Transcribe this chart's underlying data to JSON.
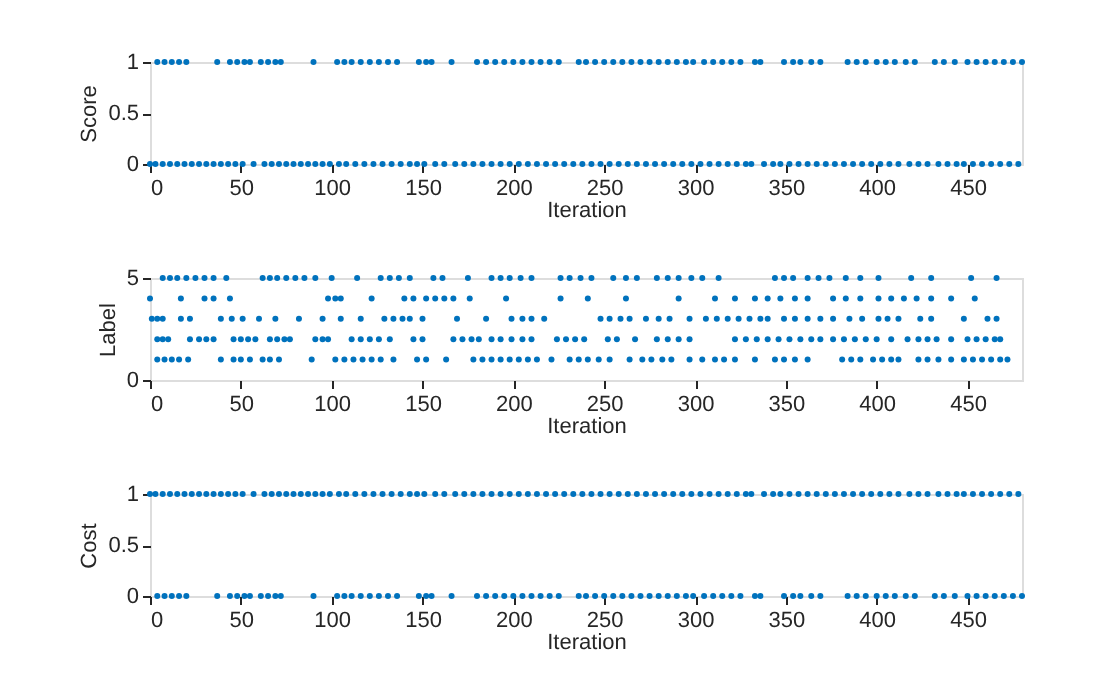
{
  "chart_data": [
    {
      "type": "scatter",
      "xlabel": "Iteration",
      "ylabel": "Score",
      "xlim": [
        0,
        480
      ],
      "xticks": [
        0,
        50,
        100,
        150,
        200,
        250,
        300,
        350,
        400,
        450
      ],
      "ylim": [
        0,
        1
      ],
      "yticks": [
        0,
        0.5,
        1
      ],
      "grid": false,
      "marker": "circle",
      "series": [
        {
          "color": "#0072bd",
          "x": [
            4,
            8,
            12,
            16,
            20,
            37,
            44,
            48,
            52,
            55,
            61,
            65,
            69,
            72,
            90,
            103,
            107,
            111,
            116,
            121,
            126,
            131,
            136,
            148,
            152,
            155,
            166,
            180,
            185,
            190,
            195,
            200,
            205,
            210,
            215,
            220,
            225,
            236,
            240,
            245,
            250,
            255,
            260,
            265,
            270,
            275,
            280,
            285,
            290,
            295,
            299,
            305,
            310,
            315,
            320,
            325,
            333,
            336,
            349,
            354,
            358,
            364,
            369,
            384,
            389,
            394,
            400,
            405,
            410,
            416,
            421,
            432,
            437,
            443,
            450,
            455,
            460,
            465,
            470,
            475,
            480
          ],
          "values": [
            1,
            1,
            1,
            1,
            1,
            1,
            1,
            1,
            1,
            1,
            1,
            1,
            1,
            1,
            1,
            1,
            1,
            1,
            1,
            1,
            1,
            1,
            1,
            1,
            1,
            1,
            1,
            1,
            1,
            1,
            1,
            1,
            1,
            1,
            1,
            1,
            1,
            1,
            1,
            1,
            1,
            1,
            1,
            1,
            1,
            1,
            1,
            1,
            1,
            1,
            1,
            1,
            1,
            1,
            1,
            1,
            1,
            1,
            1,
            1,
            1,
            1,
            1,
            1,
            1,
            1,
            1,
            1,
            1,
            1,
            1,
            1,
            1,
            1,
            1,
            1,
            1,
            1,
            1,
            1,
            1
          ]
        },
        {
          "color": "#0072bd",
          "x": [
            0,
            3,
            7,
            11,
            15,
            19,
            23,
            27,
            31,
            35,
            39,
            43,
            47,
            51,
            57,
            63,
            67,
            71,
            75,
            79,
            83,
            87,
            91,
            95,
            99,
            104,
            108,
            113,
            118,
            123,
            128,
            133,
            138,
            143,
            147,
            151,
            157,
            162,
            168,
            173,
            178,
            183,
            188,
            193,
            198,
            203,
            208,
            213,
            218,
            223,
            228,
            233,
            238,
            243,
            248,
            253,
            258,
            263,
            268,
            273,
            278,
            283,
            288,
            293,
            298,
            303,
            308,
            313,
            318,
            323,
            328,
            331,
            338,
            343,
            347,
            352,
            357,
            362,
            367,
            372,
            377,
            382,
            387,
            392,
            397,
            402,
            407,
            412,
            418,
            423,
            428,
            434,
            439,
            444,
            448,
            453,
            458,
            463,
            468,
            473,
            478
          ],
          "values": [
            0,
            0,
            0,
            0,
            0,
            0,
            0,
            0,
            0,
            0,
            0,
            0,
            0,
            0,
            0,
            0,
            0,
            0,
            0,
            0,
            0,
            0,
            0,
            0,
            0,
            0,
            0,
            0,
            0,
            0,
            0,
            0,
            0,
            0,
            0,
            0,
            0,
            0,
            0,
            0,
            0,
            0,
            0,
            0,
            0,
            0,
            0,
            0,
            0,
            0,
            0,
            0,
            0,
            0,
            0,
            0,
            0,
            0,
            0,
            0,
            0,
            0,
            0,
            0,
            0,
            0,
            0,
            0,
            0,
            0,
            0,
            0,
            0,
            0,
            0,
            0,
            0,
            0,
            0,
            0,
            0,
            0,
            0,
            0,
            0,
            0,
            0,
            0,
            0,
            0,
            0,
            0,
            0,
            0,
            0,
            0,
            0,
            0,
            0,
            0,
            0
          ]
        }
      ]
    },
    {
      "type": "scatter",
      "xlabel": "Iteration",
      "ylabel": "Label",
      "xlim": [
        0,
        480
      ],
      "xticks": [
        0,
        50,
        100,
        150,
        200,
        250,
        300,
        350,
        400,
        450
      ],
      "ylim": [
        0,
        5
      ],
      "yticks": [
        0,
        5
      ],
      "grid": false,
      "marker": "circle",
      "series": [
        {
          "color": "#0072bd",
          "x": [
            7,
            11,
            15,
            20,
            25,
            30,
            35,
            42,
            62,
            66,
            70,
            75,
            80,
            85,
            91,
            100,
            114,
            127,
            132,
            137,
            143,
            156,
            161,
            175,
            188,
            193,
            198,
            204,
            210,
            226,
            231,
            237,
            243,
            255,
            262,
            268,
            279,
            285,
            291,
            298,
            304,
            313,
            344,
            349,
            354,
            362,
            368,
            374,
            383,
            391,
            401,
            419,
            430,
            452,
            466
          ],
          "values": [
            5,
            5,
            5,
            5,
            5,
            5,
            5,
            5,
            5,
            5,
            5,
            5,
            5,
            5,
            5,
            5,
            5,
            5,
            5,
            5,
            5,
            5,
            5,
            5,
            5,
            5,
            5,
            5,
            5,
            5,
            5,
            5,
            5,
            5,
            5,
            5,
            5,
            5,
            5,
            5,
            5,
            5,
            5,
            5,
            5,
            5,
            5,
            5,
            5,
            5,
            5,
            5,
            5,
            5,
            5
          ]
        },
        {
          "color": "#0072bd",
          "x": [
            0,
            17,
            30,
            35,
            44,
            98,
            102,
            105,
            122,
            140,
            145,
            152,
            157,
            162,
            167,
            176,
            196,
            226,
            241,
            262,
            291,
            311,
            322,
            333,
            340,
            347,
            355,
            362,
            376,
            383,
            391,
            401,
            408,
            415,
            422,
            430,
            441,
            454
          ],
          "values": [
            4,
            4,
            4,
            4,
            4,
            4,
            4,
            4,
            4,
            4,
            4,
            4,
            4,
            4,
            4,
            4,
            4,
            4,
            4,
            4,
            4,
            4,
            4,
            4,
            4,
            4,
            4,
            4,
            4,
            4,
            4,
            4,
            4,
            4,
            4,
            4,
            4,
            4
          ]
        },
        {
          "color": "#0072bd",
          "x": [
            1,
            4,
            7,
            17,
            22,
            39,
            45,
            51,
            60,
            69,
            82,
            95,
            105,
            116,
            129,
            134,
            139,
            143,
            150,
            169,
            185,
            199,
            205,
            210,
            217,
            248,
            253,
            259,
            264,
            273,
            280,
            286,
            297,
            306,
            312,
            318,
            324,
            330,
            336,
            340,
            349,
            355,
            362,
            369,
            376,
            385,
            392,
            401,
            406,
            412,
            424,
            430,
            448,
            461,
            466
          ],
          "values": [
            3,
            3,
            3,
            3,
            3,
            3,
            3,
            3,
            3,
            3,
            3,
            3,
            3,
            3,
            3,
            3,
            3,
            3,
            3,
            3,
            3,
            3,
            3,
            3,
            3,
            3,
            3,
            3,
            3,
            3,
            3,
            3,
            3,
            3,
            3,
            3,
            3,
            3,
            3,
            3,
            3,
            3,
            3,
            3,
            3,
            3,
            3,
            3,
            3,
            3,
            3,
            3,
            3,
            3,
            3
          ]
        },
        {
          "color": "#0072bd",
          "x": [
            4,
            7,
            10,
            22,
            27,
            31,
            35,
            46,
            50,
            54,
            58,
            66,
            70,
            74,
            77,
            91,
            95,
            98,
            111,
            116,
            121,
            126,
            132,
            145,
            150,
            167,
            172,
            177,
            181,
            188,
            193,
            199,
            205,
            210,
            224,
            229,
            234,
            239,
            252,
            257,
            267,
            279,
            285,
            291,
            297,
            322,
            328,
            334,
            340,
            346,
            352,
            358,
            364,
            369,
            376,
            382,
            388,
            394,
            400,
            408,
            417,
            423,
            428,
            433,
            441,
            450,
            455,
            460,
            465,
            468
          ],
          "values": [
            2,
            2,
            2,
            2,
            2,
            2,
            2,
            2,
            2,
            2,
            2,
            2,
            2,
            2,
            2,
            2,
            2,
            2,
            2,
            2,
            2,
            2,
            2,
            2,
            2,
            2,
            2,
            2,
            2,
            2,
            2,
            2,
            2,
            2,
            2,
            2,
            2,
            2,
            2,
            2,
            2,
            2,
            2,
            2,
            2,
            2,
            2,
            2,
            2,
            2,
            2,
            2,
            2,
            2,
            2,
            2,
            2,
            2,
            2,
            2,
            2,
            2,
            2,
            2,
            2,
            2,
            2,
            2,
            2,
            2
          ]
        },
        {
          "color": "#0072bd",
          "x": [
            4,
            8,
            12,
            16,
            21,
            39,
            46,
            50,
            55,
            62,
            66,
            71,
            89,
            102,
            107,
            112,
            117,
            122,
            127,
            134,
            147,
            152,
            163,
            178,
            183,
            188,
            193,
            198,
            203,
            208,
            213,
            221,
            231,
            236,
            241,
            247,
            253,
            264,
            271,
            276,
            282,
            287,
            297,
            304,
            311,
            316,
            322,
            333,
            344,
            349,
            355,
            362,
            381,
            386,
            391,
            398,
            403,
            408,
            412,
            423,
            428,
            434,
            441,
            448,
            453,
            458,
            463,
            468,
            472
          ],
          "values": [
            1,
            1,
            1,
            1,
            1,
            1,
            1,
            1,
            1,
            1,
            1,
            1,
            1,
            1,
            1,
            1,
            1,
            1,
            1,
            1,
            1,
            1,
            1,
            1,
            1,
            1,
            1,
            1,
            1,
            1,
            1,
            1,
            1,
            1,
            1,
            1,
            1,
            1,
            1,
            1,
            1,
            1,
            1,
            1,
            1,
            1,
            1,
            1,
            1,
            1,
            1,
            1,
            1,
            1,
            1,
            1,
            1,
            1,
            1,
            1,
            1,
            1,
            1,
            1,
            1,
            1,
            1,
            1,
            1
          ]
        }
      ]
    },
    {
      "type": "scatter",
      "xlabel": "Iteration",
      "ylabel": "Cost",
      "xlim": [
        0,
        480
      ],
      "xticks": [
        0,
        50,
        100,
        150,
        200,
        250,
        300,
        350,
        400,
        450
      ],
      "ylim": [
        0,
        1
      ],
      "yticks": [
        0,
        0.5,
        1
      ],
      "grid": false,
      "marker": "circle",
      "series": [
        {
          "color": "#0072bd",
          "x": [
            4,
            8,
            12,
            16,
            20,
            37,
            44,
            48,
            52,
            55,
            61,
            65,
            69,
            72,
            90,
            103,
            107,
            111,
            116,
            121,
            126,
            131,
            136,
            148,
            152,
            155,
            166,
            180,
            185,
            190,
            195,
            200,
            205,
            210,
            215,
            220,
            225,
            236,
            240,
            245,
            250,
            255,
            260,
            265,
            270,
            275,
            280,
            285,
            290,
            295,
            299,
            305,
            310,
            315,
            320,
            325,
            333,
            336,
            349,
            354,
            358,
            364,
            369,
            384,
            389,
            394,
            400,
            405,
            410,
            416,
            421,
            432,
            437,
            443,
            450,
            455,
            460,
            465,
            470,
            475,
            480
          ],
          "values": [
            0,
            0,
            0,
            0,
            0,
            0,
            0,
            0,
            0,
            0,
            0,
            0,
            0,
            0,
            0,
            0,
            0,
            0,
            0,
            0,
            0,
            0,
            0,
            0,
            0,
            0,
            0,
            0,
            0,
            0,
            0,
            0,
            0,
            0,
            0,
            0,
            0,
            0,
            0,
            0,
            0,
            0,
            0,
            0,
            0,
            0,
            0,
            0,
            0,
            0,
            0,
            0,
            0,
            0,
            0,
            0,
            0,
            0,
            0,
            0,
            0,
            0,
            0,
            0,
            0,
            0,
            0,
            0,
            0,
            0,
            0,
            0,
            0,
            0,
            0,
            0,
            0,
            0,
            0,
            0,
            0
          ]
        },
        {
          "color": "#0072bd",
          "x": [
            0,
            3,
            7,
            11,
            15,
            19,
            23,
            27,
            31,
            35,
            39,
            43,
            47,
            51,
            57,
            63,
            67,
            71,
            75,
            79,
            83,
            87,
            91,
            95,
            99,
            104,
            108,
            113,
            118,
            123,
            128,
            133,
            138,
            143,
            147,
            151,
            157,
            162,
            168,
            173,
            178,
            183,
            188,
            193,
            198,
            203,
            208,
            213,
            218,
            223,
            228,
            233,
            238,
            243,
            248,
            253,
            258,
            263,
            268,
            273,
            278,
            283,
            288,
            293,
            298,
            303,
            308,
            313,
            318,
            323,
            328,
            331,
            338,
            343,
            347,
            352,
            357,
            362,
            367,
            372,
            377,
            382,
            387,
            392,
            397,
            402,
            407,
            412,
            418,
            423,
            428,
            434,
            439,
            444,
            448,
            453,
            458,
            463,
            468,
            473,
            478
          ],
          "values": [
            1,
            1,
            1,
            1,
            1,
            1,
            1,
            1,
            1,
            1,
            1,
            1,
            1,
            1,
            1,
            1,
            1,
            1,
            1,
            1,
            1,
            1,
            1,
            1,
            1,
            1,
            1,
            1,
            1,
            1,
            1,
            1,
            1,
            1,
            1,
            1,
            1,
            1,
            1,
            1,
            1,
            1,
            1,
            1,
            1,
            1,
            1,
            1,
            1,
            1,
            1,
            1,
            1,
            1,
            1,
            1,
            1,
            1,
            1,
            1,
            1,
            1,
            1,
            1,
            1,
            1,
            1,
            1,
            1,
            1,
            1,
            1,
            1,
            1,
            1,
            1,
            1,
            1,
            1,
            1,
            1,
            1,
            1,
            1,
            1,
            1,
            1,
            1,
            1,
            1,
            1,
            1,
            1,
            1,
            1,
            1,
            1,
            1,
            1,
            1,
            1
          ]
        }
      ]
    }
  ]
}
